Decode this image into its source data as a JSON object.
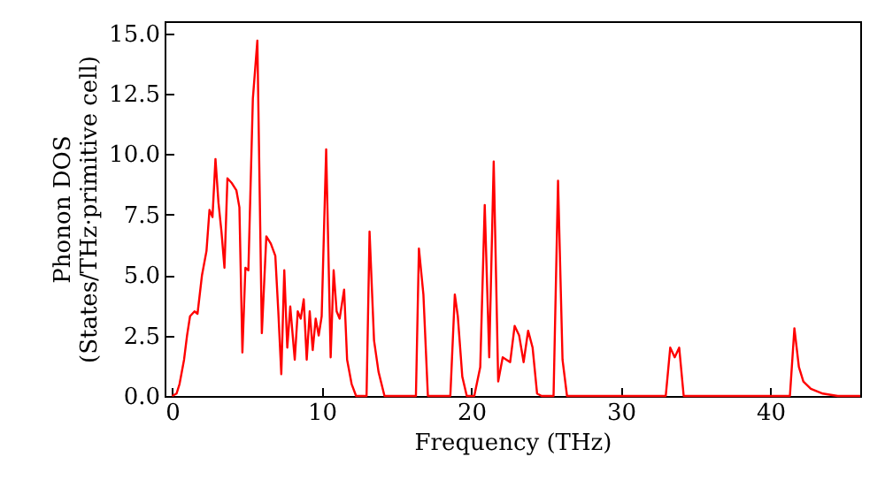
{
  "chart_data": {
    "type": "line",
    "xlabel": "Frequency (THz)",
    "ylabel": "Phonon DOS\n(States/THz·primitive cell)",
    "x": [
      0,
      0.3,
      0.5,
      0.8,
      1.0,
      1.2,
      1.5,
      1.7,
      2.0,
      2.3,
      2.5,
      2.7,
      2.9,
      3.1,
      3.3,
      3.5,
      3.7,
      4.0,
      4.3,
      4.5,
      4.7,
      4.9,
      5.1,
      5.4,
      5.7,
      6.0,
      6.3,
      6.6,
      6.9,
      7.1,
      7.3,
      7.5,
      7.7,
      7.9,
      8.2,
      8.4,
      8.6,
      8.8,
      9.0,
      9.2,
      9.4,
      9.6,
      9.8,
      10.0,
      10.3,
      10.6,
      10.8,
      11.0,
      11.2,
      11.5,
      11.7,
      12.0,
      12.3,
      13.0,
      13.2,
      13.5,
      13.8,
      14.2,
      16.3,
      16.5,
      16.8,
      17.1,
      18.6,
      18.9,
      19.1,
      19.4,
      19.7,
      20.2,
      20.6,
      20.9,
      21.2,
      21.5,
      21.8,
      22.1,
      22.6,
      22.9,
      23.2,
      23.5,
      23.8,
      24.1,
      24.4,
      24.7,
      25.5,
      25.8,
      26.1,
      26.4,
      33.0,
      33.3,
      33.6,
      33.9,
      34.2,
      41.3,
      41.6,
      41.9,
      42.2,
      42.7,
      43.5,
      44.5,
      46
    ],
    "series": [
      {
        "color": "#ff0000",
        "values": [
          0,
          0.1,
          0.5,
          1.5,
          2.5,
          3.3,
          3.5,
          3.4,
          5.0,
          6.0,
          7.7,
          7.4,
          9.8,
          8.0,
          6.8,
          5.3,
          9.0,
          8.8,
          8.5,
          7.8,
          1.8,
          5.3,
          5.2,
          12.3,
          14.7,
          2.6,
          6.6,
          6.3,
          5.8,
          3.5,
          0.9,
          5.2,
          2.0,
          3.7,
          1.5,
          3.5,
          3.2,
          4.0,
          1.5,
          3.5,
          1.9,
          3.2,
          2.5,
          3.3,
          10.2,
          1.6,
          5.2,
          3.5,
          3.2,
          4.4,
          1.5,
          0.5,
          0,
          0,
          6.8,
          2.3,
          1.0,
          0,
          0,
          6.1,
          4.2,
          0,
          0,
          4.2,
          3.3,
          0.8,
          0,
          0,
          1.2,
          7.9,
          1.6,
          9.7,
          0.6,
          1.6,
          1.4,
          2.9,
          2.5,
          1.4,
          2.7,
          2.0,
          0.1,
          0,
          0,
          8.9,
          1.5,
          0,
          0,
          2.0,
          1.6,
          2.0,
          0,
          0,
          2.8,
          1.2,
          0.6,
          0.3,
          0.1,
          0,
          0
        ]
      }
    ],
    "xlim": [
      -0.5,
      46
    ],
    "xticks": [
      0,
      10,
      20,
      30,
      40
    ],
    "ylim": [
      0,
      15.5
    ],
    "yticks": [
      {
        "value": 0,
        "label": "0.0"
      },
      {
        "value": 2.5,
        "label": "2.5"
      },
      {
        "value": 5,
        "label": "5.0"
      },
      {
        "value": 7.5,
        "label": "7.5"
      },
      {
        "value": 10,
        "label": "10.0"
      },
      {
        "value": 12.5,
        "label": "12.5"
      },
      {
        "value": 15,
        "label": "15.0"
      }
    ],
    "grid": false
  }
}
